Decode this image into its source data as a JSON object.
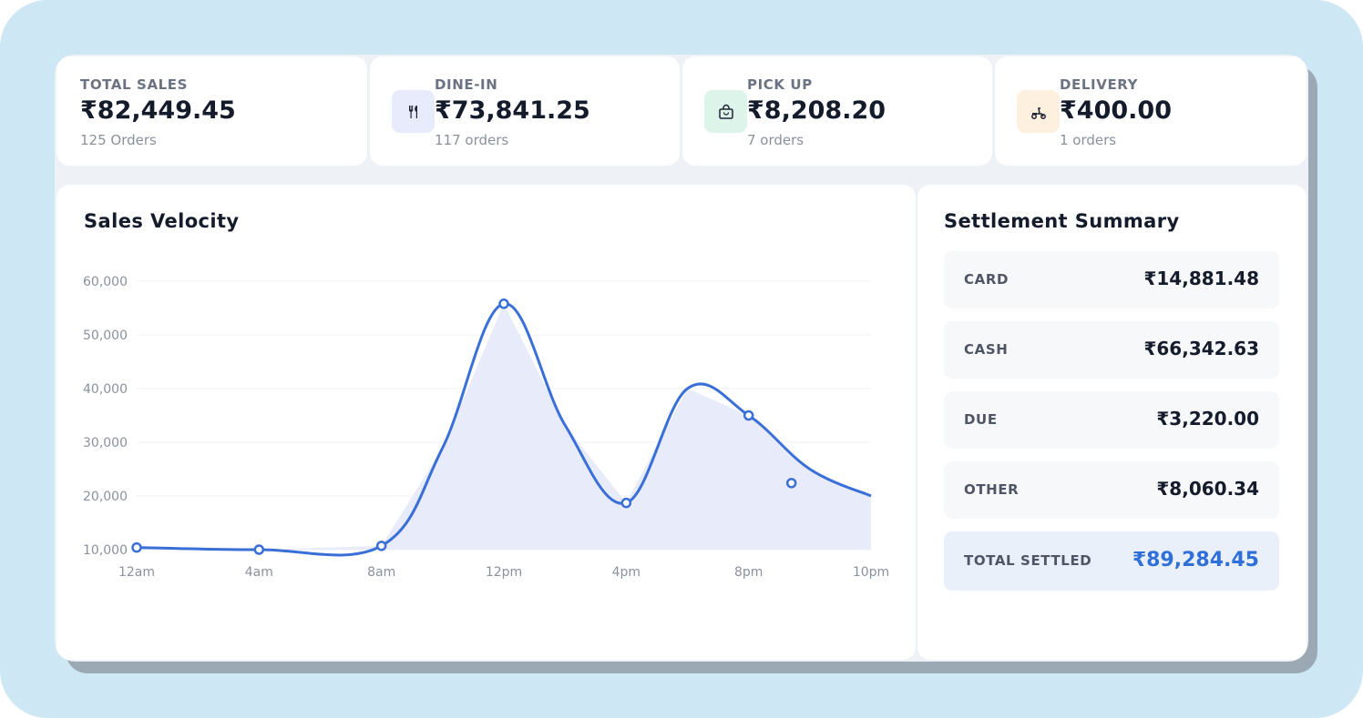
{
  "stats": [
    {
      "label": "TOTAL SALES",
      "value": "₹82,449.45",
      "sub": "125 Orders",
      "icon": null
    },
    {
      "label": "DINE-IN",
      "value": "₹73,841.25",
      "sub": "117 orders",
      "icon": "cutlery-icon",
      "icon_bg": "#e8ebfb"
    },
    {
      "label": "PICK UP",
      "value": "₹8,208.20",
      "sub": "7 orders",
      "icon": "shopping-bag-icon",
      "icon_bg": "#dcf4ea"
    },
    {
      "label": "DELIVERY",
      "value": "₹400.00",
      "sub": "1 orders",
      "icon": "scooter-icon",
      "icon_bg": "#fdf0de"
    }
  ],
  "velocity": {
    "title": "Sales Velocity"
  },
  "chart_data": {
    "type": "area",
    "title": "Sales Velocity",
    "xlabel": "",
    "ylabel": "",
    "x_ticks": [
      "12am",
      "4am",
      "8am",
      "12pm",
      "4pm",
      "8pm",
      "10pm"
    ],
    "y_ticks": [
      "10,000",
      "20,000",
      "30,000",
      "40,000",
      "50,000",
      "60,000"
    ],
    "ylim": [
      10000,
      60000
    ],
    "grid": true,
    "legend": "none",
    "series": [
      {
        "x": [
          0,
          4,
          8,
          10,
          12,
          14,
          16,
          18,
          20,
          22,
          24
        ],
        "values": [
          10400,
          10000,
          10700,
          29000,
          55800,
          33200,
          18700,
          40000,
          35000,
          25000,
          20000
        ],
        "markers": [
          0,
          4,
          8,
          12,
          16,
          20,
          24
        ]
      }
    ],
    "colors": {
      "line": "#3a6fd8",
      "fill": "#e8ecfa",
      "grid": "#edf0f4"
    }
  },
  "settlement": {
    "title": "Settlement Summary",
    "rows": [
      {
        "label": "CARD",
        "value": "₹14,881.48"
      },
      {
        "label": "CASH",
        "value": "₹66,342.63"
      },
      {
        "label": "DUE",
        "value": "₹3,220.00"
      },
      {
        "label": "OTHER",
        "value": "₹8,060.34"
      }
    ],
    "total": {
      "label": "TOTAL SETTLED",
      "value": "₹89,284.45"
    }
  }
}
